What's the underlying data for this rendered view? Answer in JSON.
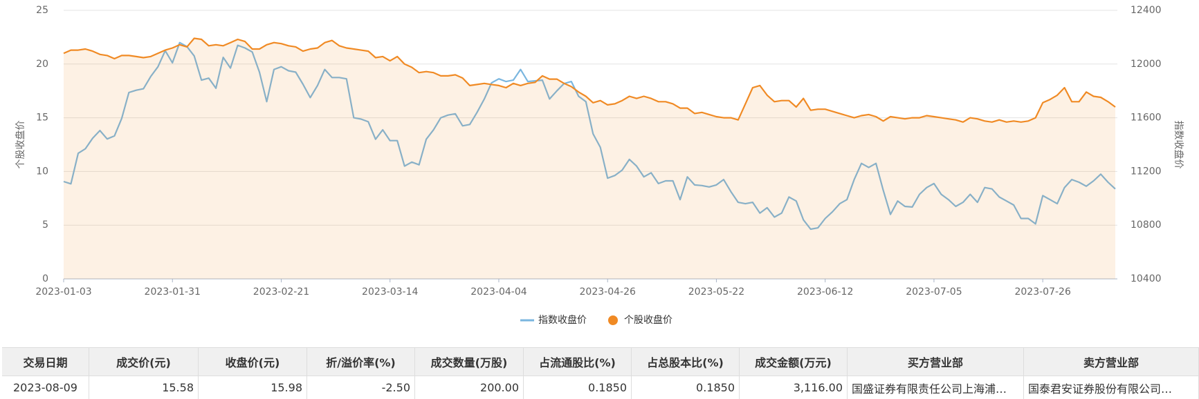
{
  "chart_data": {
    "type": "line",
    "y_label": "个股收盘价",
    "y2_label": "指数收盘价",
    "ylim": [
      0,
      25
    ],
    "yticks": [
      0,
      5,
      10,
      15,
      20,
      25
    ],
    "y2lim": [
      10400,
      12400
    ],
    "y2ticks": [
      10400,
      10800,
      11200,
      11600,
      12000,
      12400
    ],
    "grid": true,
    "categories": [
      "2023-01-03",
      null,
      null,
      null,
      null,
      null,
      null,
      null,
      null,
      null,
      null,
      null,
      null,
      null,
      null,
      "2023-01-31",
      null,
      null,
      null,
      null,
      null,
      null,
      null,
      null,
      null,
      null,
      null,
      null,
      null,
      null,
      "2023-02-21",
      null,
      null,
      null,
      null,
      null,
      null,
      null,
      null,
      null,
      null,
      null,
      null,
      null,
      null,
      "2023-03-14",
      null,
      null,
      null,
      null,
      null,
      null,
      null,
      null,
      null,
      null,
      null,
      null,
      null,
      null,
      "2023-04-04",
      null,
      null,
      null,
      null,
      null,
      null,
      null,
      null,
      null,
      null,
      null,
      null,
      null,
      null,
      "2023-04-26",
      null,
      null,
      null,
      null,
      null,
      null,
      null,
      null,
      null,
      null,
      null,
      null,
      null,
      null,
      "2023-05-22",
      null,
      null,
      null,
      null,
      null,
      null,
      null,
      null,
      null,
      null,
      null,
      null,
      null,
      null,
      "2023-06-12",
      null,
      null,
      null,
      null,
      null,
      null,
      null,
      null,
      null,
      null,
      null,
      null,
      null,
      null,
      "2023-07-05",
      null,
      null,
      null,
      null,
      null,
      null,
      null,
      null,
      null,
      null,
      null,
      null,
      null,
      null,
      "2023-07-26",
      null,
      null,
      null,
      null,
      null,
      null,
      null,
      null,
      null,
      null
    ],
    "series": [
      {
        "name": "指数收盘价",
        "color": "#7ab6df",
        "axis": "y2",
        "legend_marker": "line",
        "values": [
          11125,
          11108,
          11335,
          11369,
          11448,
          11505,
          11442,
          11465,
          11595,
          11788,
          11805,
          11816,
          11907,
          11980,
          12100,
          12009,
          12160,
          12130,
          12060,
          11880,
          11895,
          11820,
          12050,
          11970,
          12140,
          12120,
          12090,
          11940,
          11720,
          11960,
          11980,
          11950,
          11940,
          11850,
          11750,
          11840,
          11960,
          11900,
          11900,
          11890,
          11600,
          11590,
          11570,
          11440,
          11510,
          11430,
          11430,
          11240,
          11270,
          11250,
          11440,
          11510,
          11600,
          11620,
          11630,
          11540,
          11550,
          11640,
          11740,
          11860,
          11890,
          11870,
          11880,
          11960,
          11870,
          11875,
          11880,
          11740,
          11800,
          11855,
          11870,
          11760,
          11720,
          11480,
          11380,
          11150,
          11170,
          11210,
          11290,
          11240,
          11160,
          11190,
          11110,
          11130,
          11130,
          10990,
          11160,
          11100,
          11095,
          11085,
          11100,
          11140,
          11050,
          10970,
          10960,
          10970,
          10890,
          10930,
          10860,
          10890,
          11010,
          10980,
          10840,
          10770,
          10780,
          10850,
          10900,
          10960,
          10990,
          11140,
          11260,
          11230,
          11260,
          11060,
          10880,
          10980,
          10940,
          10935,
          11030,
          11080,
          11110,
          11030,
          10990,
          10940,
          10970,
          11030,
          10970,
          11080,
          11070,
          11010,
          10980,
          10950,
          10850,
          10850,
          10810,
          11020,
          10990,
          10960,
          11080,
          11140,
          11120,
          11090,
          11130,
          11180,
          11120,
          11070
        ]
      },
      {
        "name": "个股收盘价",
        "color": "#f08a24",
        "axis": "y",
        "legend_marker": "circle",
        "area": true,
        "values": [
          21.0,
          21.3,
          21.3,
          21.4,
          21.2,
          20.9,
          20.8,
          20.5,
          20.8,
          20.8,
          20.7,
          20.6,
          20.7,
          21.0,
          21.3,
          21.5,
          21.8,
          21.6,
          22.4,
          22.3,
          21.7,
          21.8,
          21.7,
          22.0,
          22.3,
          22.1,
          21.4,
          21.4,
          21.8,
          22.0,
          21.9,
          21.7,
          21.6,
          21.2,
          21.4,
          21.5,
          22.0,
          22.2,
          21.7,
          21.5,
          21.4,
          21.3,
          21.2,
          20.6,
          20.7,
          20.3,
          20.7,
          20.0,
          19.7,
          19.2,
          19.3,
          19.2,
          18.9,
          18.9,
          19.0,
          18.7,
          18.0,
          18.1,
          18.2,
          18.1,
          18.0,
          17.8,
          18.2,
          18.0,
          18.2,
          18.3,
          18.9,
          18.6,
          18.6,
          18.2,
          17.9,
          17.4,
          17.0,
          16.4,
          16.6,
          16.2,
          16.3,
          16.6,
          17.0,
          16.8,
          17.0,
          16.8,
          16.5,
          16.5,
          16.3,
          15.9,
          15.9,
          15.4,
          15.5,
          15.3,
          15.1,
          15.0,
          15.0,
          14.8,
          16.3,
          17.8,
          18.0,
          17.1,
          16.5,
          16.6,
          16.6,
          16.0,
          16.8,
          15.7,
          15.8,
          15.8,
          15.6,
          15.4,
          15.2,
          15.0,
          15.2,
          15.3,
          15.1,
          14.7,
          15.1,
          15.0,
          14.9,
          15.0,
          15.0,
          15.2,
          15.1,
          15.0,
          14.9,
          14.8,
          14.6,
          15.0,
          14.9,
          14.7,
          14.6,
          14.8,
          14.6,
          14.7,
          14.6,
          14.7,
          15.0,
          16.4,
          16.7,
          17.1,
          17.8,
          16.5,
          16.5,
          17.4,
          17.0,
          16.9,
          16.5,
          16.0
        ]
      }
    ]
  },
  "table": {
    "columns": [
      "交易日期",
      "成交价(元)",
      "收盘价(元)",
      "折/溢价率(%)",
      "成交数量(万股)",
      "占流通股比(%)",
      "占总股本比(%)",
      "成交金额(万元)",
      "买方营业部",
      "卖方营业部"
    ],
    "rows": [
      [
        "2023-08-09",
        "15.58",
        "15.98",
        "-2.50",
        "200.00",
        "0.1850",
        "0.1850",
        "3,116.00",
        "国盛证券有限责任公司上海浦…",
        "国泰君安证券股份有限公司…"
      ]
    ]
  }
}
